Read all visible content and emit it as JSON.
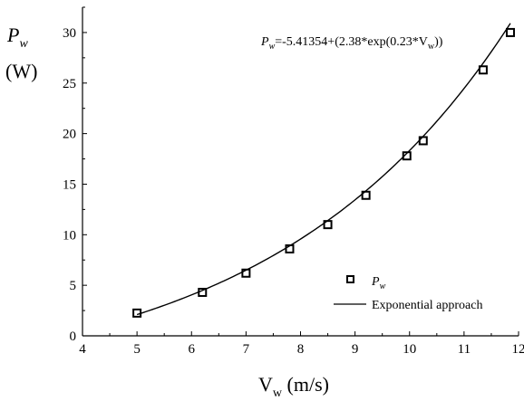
{
  "chart_data": {
    "type": "scatter",
    "x_ticks": [
      "4",
      "5",
      "6",
      "7",
      "8",
      "9",
      "10",
      "11",
      "12"
    ],
    "y_ticks": [
      "0",
      "5",
      "10",
      "15",
      "20",
      "25",
      "30"
    ],
    "xlim": [
      4,
      12
    ],
    "ylim": [
      0,
      32.5
    ],
    "xlabel": {
      "main": "V",
      "sub": "w",
      "unit": " (m/s)"
    },
    "ylabel": {
      "main": "P",
      "sub": "w",
      "unit": "(W)"
    },
    "equation": {
      "lhs_main": "P",
      "lhs_sub": "w",
      "text": "=-5.41354+(2.38*exp(0.23*V",
      "var_sub": "w",
      "tail": "))"
    },
    "series": [
      {
        "name": {
          "main": "P",
          "sub": "w"
        },
        "marker": "open-square",
        "x": [
          5.0,
          6.2,
          7.0,
          7.8,
          8.5,
          9.2,
          9.95,
          10.25,
          11.35,
          11.85
        ],
        "y": [
          2.25,
          4.3,
          6.2,
          8.6,
          11.0,
          13.9,
          17.8,
          19.3,
          26.3,
          30.0
        ]
      },
      {
        "name": "Exponential approach",
        "type": "line",
        "function": {
          "a": -5.41354,
          "b": 2.38,
          "c": 0.23
        },
        "x_range": [
          5.0,
          11.85
        ]
      }
    ],
    "legend_position": "bottom-right",
    "grid": false,
    "colors": {
      "markers": "#000000",
      "line": "#000000",
      "axes": "#000000"
    }
  }
}
